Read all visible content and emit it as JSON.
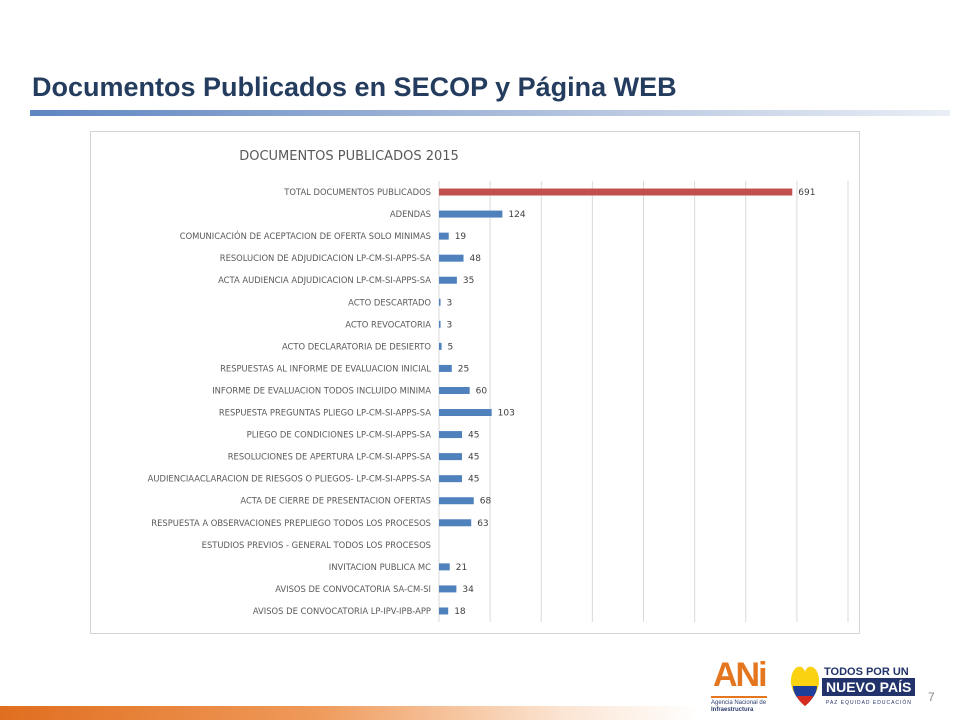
{
  "slide": {
    "title": "Documentos Publicados en SECOP y Página WEB",
    "page_number": "7"
  },
  "chart_data": {
    "type": "bar",
    "orientation": "horizontal",
    "title": "DOCUMENTOS PUBLICADOS 2015",
    "xlabel": "",
    "ylabel": "",
    "xlim": [
      0,
      800
    ],
    "grid": true,
    "legend": "none",
    "categories": [
      "TOTAL DOCUMENTOS PUBLICADOS",
      "ADENDAS",
      "COMUNICACIÓN DE ACEPTACION DE OFERTA SOLO MINIMAS",
      "RESOLUCION DE ADJUDICACION  LP-CM-SI-APPS-SA",
      "ACTA AUDIENCIA ADJUDICACION  LP-CM-SI-APPS-SA",
      "ACTO DESCARTADO",
      "ACTO REVOCATORIA",
      "ACTO DECLARATORIA DE DESIERTO",
      "RESPUESTAS AL INFORME DE EVALUACION INICIAL",
      "INFORME DE EVALUACION  TODOS INCLUIDO MINIMA",
      "RESPUESTA PREGUNTAS PLIEGO LP-CM-SI-APPS-SA",
      "PLIEGO DE CONDICIONES LP-CM-SI-APPS-SA",
      "RESOLUCIONES DE APERTURA LP-CM-SI-APPS-SA",
      "AUDIENCIAACLARACION DE RIESGOS O PLIEGOS- LP-CM-SI-APPS-SA",
      "ACTA DE CIERRE DE PRESENTACION OFERTAS",
      "RESPUESTA A OBSERVACIONES PREPLIEGO TODOS LOS PROCESOS",
      "ESTUDIOS PREVIOS - GENERAL TODOS LOS PROCESOS",
      "INVITACION PUBLICA MC",
      "AVISOS DE CONVOCATORIA SA-CM-SI",
      "AVISOS DE CONVOCATORIA LP-IPV-IPB-APP"
    ],
    "values": [
      691,
      124,
      19,
      48,
      35,
      3,
      3,
      5,
      25,
      60,
      103,
      45,
      45,
      45,
      68,
      63,
      null,
      21,
      34,
      18
    ],
    "data_labels": [
      "691",
      "124",
      "19",
      "48",
      "35",
      "3",
      "3",
      "5",
      "25",
      "60",
      "103",
      "45",
      "45",
      "45",
      "68",
      "63",
      "",
      "21",
      "34",
      "18"
    ],
    "colors": {
      "bar": "#4f81bd",
      "highlight_bar": "#c0504d",
      "grid": "#d9d9d9"
    },
    "highlight_index": 0
  },
  "logos": {
    "ani": {
      "mark": "ANi",
      "subtitle_1": "Agencia Nacional de",
      "subtitle_2": "Infraestructura",
      "color": "#e4761f"
    },
    "government": {
      "line1": "TODOS POR UN",
      "line2": "NUEVO PAÍS",
      "line3": "PAZ  EQUIDAD  EDUCACIÓN",
      "color": "#22336b"
    }
  }
}
